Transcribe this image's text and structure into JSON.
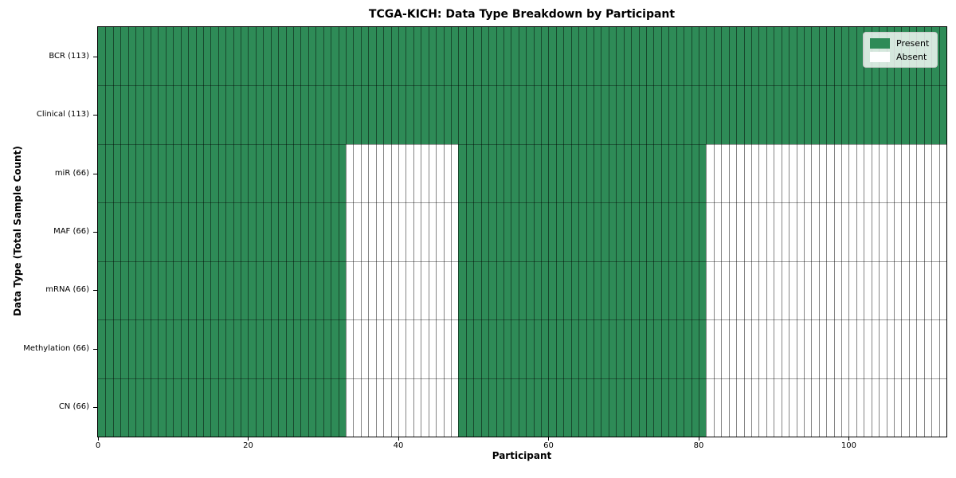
{
  "chart_data": {
    "type": "heatmap",
    "title": "TCGA-KICH: Data Type Breakdown by Participant",
    "xlabel": "Participant",
    "ylabel": "Data Type (Total Sample Count)",
    "n_participants": 113,
    "xlim": [
      0,
      113
    ],
    "x_ticks": [
      0,
      20,
      40,
      60,
      80,
      100
    ],
    "grid": "cell-borders",
    "legend_position": "upper right",
    "rows": [
      {
        "label": "BCR (113)",
        "data_type": "BCR",
        "total_samples": 113,
        "present_ranges": [
          [
            0,
            113
          ]
        ]
      },
      {
        "label": "Clinical (113)",
        "data_type": "Clinical",
        "total_samples": 113,
        "present_ranges": [
          [
            0,
            113
          ]
        ]
      },
      {
        "label": "miR (66)",
        "data_type": "miR",
        "total_samples": 66,
        "present_ranges": [
          [
            0,
            33
          ],
          [
            48,
            81
          ]
        ]
      },
      {
        "label": "MAF (66)",
        "data_type": "MAF",
        "total_samples": 66,
        "present_ranges": [
          [
            0,
            33
          ],
          [
            48,
            81
          ]
        ]
      },
      {
        "label": "mRNA (66)",
        "data_type": "mRNA",
        "total_samples": 66,
        "present_ranges": [
          [
            0,
            33
          ],
          [
            48,
            81
          ]
        ]
      },
      {
        "label": "Methylation (66)",
        "data_type": "Methylation",
        "total_samples": 66,
        "present_ranges": [
          [
            0,
            33
          ],
          [
            48,
            81
          ]
        ]
      },
      {
        "label": "CN (66)",
        "data_type": "CN",
        "total_samples": 66,
        "present_ranges": [
          [
            0,
            33
          ],
          [
            48,
            81
          ]
        ]
      }
    ],
    "legend": [
      {
        "label": "Present",
        "color": "#2e8b57"
      },
      {
        "label": "Absent",
        "color": "#ffffff"
      }
    ],
    "colors": {
      "present": "#2e8b57",
      "absent": "#ffffff",
      "background": "#ffffff"
    }
  }
}
